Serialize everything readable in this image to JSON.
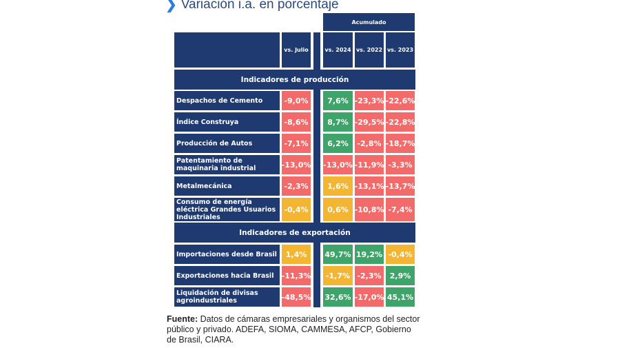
{
  "title": "Variación i.a. en porcentaje",
  "icons": {
    "title_icon": "chevron-right-icon"
  },
  "colors": {
    "navy": "#1e3a70",
    "negative": "#f26a6a",
    "positive": "#3fa46a",
    "neutral": "#f4b533"
  },
  "header": {
    "group": "Acumulado",
    "columns": [
      "vs. Julio",
      "vs. 2024",
      "vs. 2022",
      "vs. 2023"
    ]
  },
  "sections": [
    {
      "title": "Indicadores de producción",
      "rows": [
        {
          "label": "Despachos de Cemento",
          "values": [
            "-9,0%",
            "7,6%",
            "-23,3%",
            "-22,6%"
          ],
          "status": [
            "red",
            "green",
            "red",
            "red"
          ]
        },
        {
          "label": "Índice Construya",
          "values": [
            "-8,6%",
            "8,7%",
            "-29,5%",
            "-22,8%"
          ],
          "status": [
            "red",
            "green",
            "red",
            "red"
          ]
        },
        {
          "label": "Producción de Autos",
          "values": [
            "-7,1%",
            "6,2%",
            "-2,8%",
            "-18,7%"
          ],
          "status": [
            "red",
            "green",
            "red",
            "red"
          ]
        },
        {
          "label": "Patentamiento de maquinaria industrial",
          "values": [
            "-13,0%",
            "-13,0%",
            "-11,9%",
            "-3,3%"
          ],
          "status": [
            "red",
            "red",
            "red",
            "red"
          ]
        },
        {
          "label": "Metalmecánica",
          "values": [
            "-2,3%",
            "1,6%",
            "-13,1%",
            "-13,7%"
          ],
          "status": [
            "red",
            "yellow",
            "red",
            "red"
          ]
        },
        {
          "label": "Consumo de energía eléctrica Grandes Usuarios Industriales",
          "values": [
            "-0,4%",
            "0,6%",
            "-10,8%",
            "-7,4%"
          ],
          "status": [
            "yellow",
            "yellow",
            "red",
            "red"
          ]
        }
      ]
    },
    {
      "title": "Indicadores de exportación",
      "rows": [
        {
          "label": "Importaciones desde Brasil",
          "values": [
            "1,4%",
            "49,7%",
            "19,2%",
            "-0,4%"
          ],
          "status": [
            "yellow",
            "green",
            "green",
            "yellow"
          ]
        },
        {
          "label": "Exportaciones hacia Brasil",
          "values": [
            "-11,3%",
            "-1,7%",
            "-2,3%",
            "2,9%"
          ],
          "status": [
            "red",
            "yellow",
            "red",
            "green"
          ]
        },
        {
          "label": "Liquidación de divisas agroindustriales",
          "values": [
            "-48,5%",
            "32,6%",
            "-17,0%",
            "45,1%"
          ],
          "status": [
            "red",
            "green",
            "red",
            "green"
          ]
        }
      ]
    }
  ],
  "footer": {
    "label": "Fuente:",
    "text": " Datos de cámaras empresariales y organismos del sector público y privado. ADEFA, SIOMA, CAMMESA, AFCP, Gobierno de Brasil, CIARA."
  }
}
